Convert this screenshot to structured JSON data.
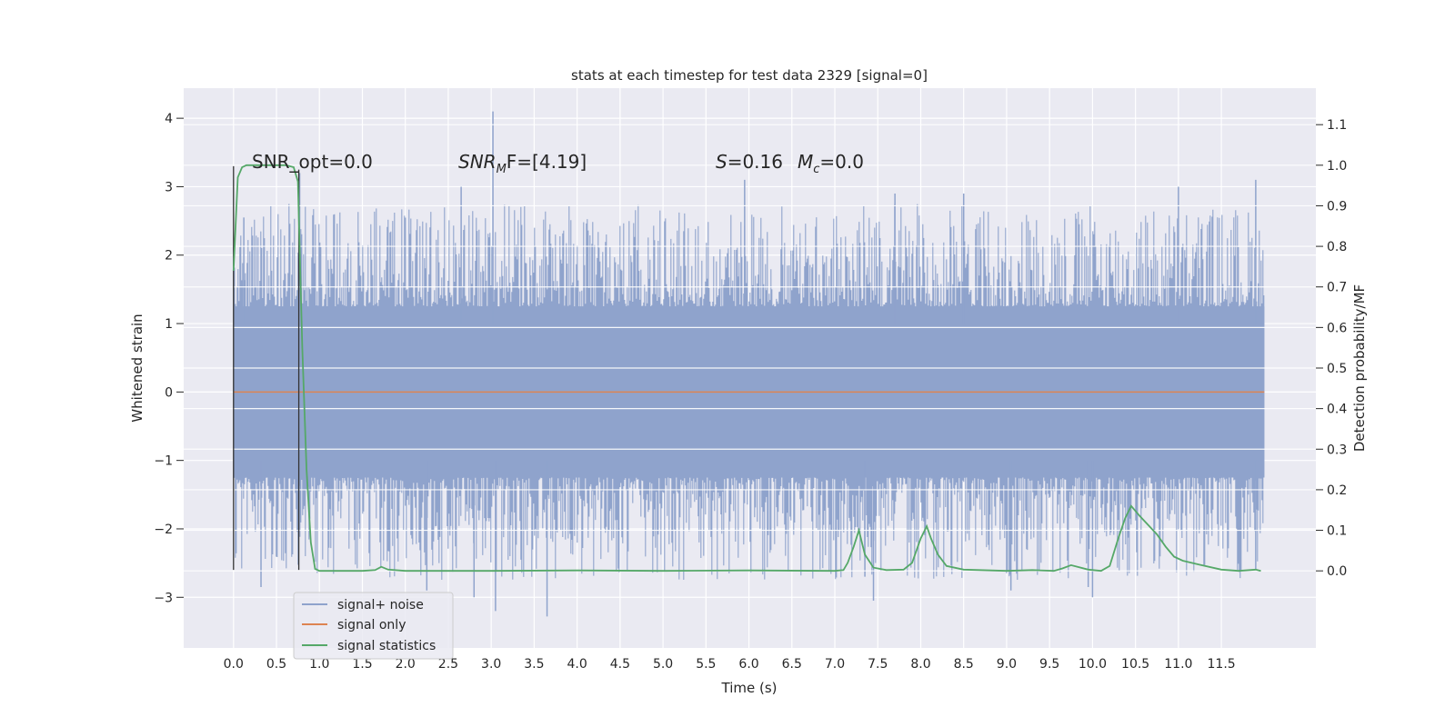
{
  "chart_data": {
    "type": "line",
    "title": "stats at each timestep for test data 2329 [signal=0]",
    "xlabel": "Time (s)",
    "ylabel_left": "Whitened strain",
    "ylabel_right": "Detection probability/MF",
    "xlim": [
      -0.58,
      12.6
    ],
    "ylim_left": [
      -3.74,
      4.44
    ],
    "ylim_right": [
      -0.19,
      1.19
    ],
    "x_ticks": [
      0.0,
      0.5,
      1.0,
      1.5,
      2.0,
      2.5,
      3.0,
      3.5,
      4.0,
      4.5,
      5.0,
      5.5,
      6.0,
      6.5,
      7.0,
      7.5,
      8.0,
      8.5,
      9.0,
      9.5,
      10.0,
      10.5,
      11.0,
      11.5
    ],
    "x_tick_labels": [
      "0.0",
      "0.5",
      "1.0",
      "1.5",
      "2.0",
      "2.5",
      "3.0",
      "3.5",
      "4.0",
      "4.5",
      "5.0",
      "5.5",
      "6.0",
      "6.5",
      "7.0",
      "7.5",
      "8.0",
      "8.5",
      "9.0",
      "9.5",
      "10.0",
      "10.5",
      "11.0",
      "11.5"
    ],
    "y_left_ticks": [
      -3,
      -2,
      -1,
      0,
      1,
      2,
      3,
      4
    ],
    "y_left_tick_labels": [
      "−3",
      "−2",
      "−1",
      "0",
      "1",
      "2",
      "3",
      "4"
    ],
    "y_right_ticks": [
      0.0,
      0.1,
      0.2,
      0.3,
      0.4,
      0.5,
      0.6,
      0.7,
      0.8,
      0.9,
      1.0,
      1.1
    ],
    "y_right_tick_labels": [
      "0.0",
      "0.1",
      "0.2",
      "0.3",
      "0.4",
      "0.5",
      "0.6",
      "0.7",
      "0.8",
      "0.9",
      "1.0",
      "1.1"
    ],
    "grid": true,
    "legend_position": "lower-left",
    "series": [
      {
        "name": "signal+ noise",
        "axis": "left",
        "color": "#8fa3cc",
        "kind": "dense-noise",
        "x_range": [
          0.0,
          12.0
        ],
        "typical_range": [
          -1.25,
          1.25
        ],
        "spikes": [
          {
            "x": 3.02,
            "y": 4.1
          },
          {
            "x": 0.77,
            "y": 3.2
          },
          {
            "x": 11.9,
            "y": 3.1
          },
          {
            "x": 5.95,
            "y": 3.1
          },
          {
            "x": 11.0,
            "y": 3.0
          },
          {
            "x": 8.5,
            "y": 2.9
          },
          {
            "x": 2.65,
            "y": 3.0
          },
          {
            "x": 7.7,
            "y": 2.9
          },
          {
            "x": 0.12,
            "y": 2.55
          },
          {
            "x": 3.65,
            "y": -3.28
          },
          {
            "x": 3.05,
            "y": -3.2
          },
          {
            "x": 7.45,
            "y": -3.05
          },
          {
            "x": 10.0,
            "y": -3.0
          },
          {
            "x": 0.32,
            "y": -2.85
          },
          {
            "x": 2.25,
            "y": -2.9
          },
          {
            "x": 9.05,
            "y": -2.9
          },
          {
            "x": 2.8,
            "y": -3.0
          },
          {
            "x": 9.95,
            "y": -2.85
          },
          {
            "x": 7.35,
            "y": -2.7
          },
          {
            "x": 11.9,
            "y": -2.6
          }
        ]
      },
      {
        "name": "signal only",
        "axis": "left",
        "color": "#dd8452",
        "x": [
          0.0,
          12.0
        ],
        "y": [
          0.0,
          0.0
        ]
      },
      {
        "name": "signal statistics",
        "axis": "right",
        "color": "#55a868",
        "x": [
          0.0,
          0.05,
          0.1,
          0.15,
          0.2,
          0.3,
          0.4,
          0.5,
          0.6,
          0.65,
          0.7,
          0.75,
          0.8,
          0.85,
          0.9,
          0.95,
          1.0,
          1.2,
          1.5,
          1.65,
          1.72,
          1.8,
          2.0,
          3.0,
          4.0,
          5.0,
          6.0,
          7.0,
          7.1,
          7.15,
          7.22,
          7.28,
          7.35,
          7.45,
          7.6,
          7.8,
          7.9,
          8.0,
          8.07,
          8.12,
          8.2,
          8.3,
          8.5,
          9.0,
          9.3,
          9.55,
          9.65,
          9.75,
          9.95,
          10.1,
          10.2,
          10.3,
          10.38,
          10.45,
          10.55,
          10.75,
          10.85,
          10.95,
          11.05,
          11.25,
          11.5,
          11.7,
          11.9,
          11.96
        ],
        "y": [
          0.74,
          0.97,
          0.995,
          1.0,
          1.0,
          1.0,
          1.0,
          1.0,
          1.0,
          0.998,
          0.995,
          0.96,
          0.55,
          0.25,
          0.07,
          0.005,
          0.0,
          0.0,
          0.0,
          0.002,
          0.01,
          0.003,
          0.0,
          0.0,
          0.001,
          0.0,
          0.001,
          0.0,
          0.002,
          0.02,
          0.06,
          0.1,
          0.04,
          0.008,
          0.002,
          0.003,
          0.02,
          0.08,
          0.11,
          0.08,
          0.04,
          0.012,
          0.003,
          0.0,
          0.002,
          0.0,
          0.006,
          0.014,
          0.003,
          0.0,
          0.012,
          0.08,
          0.13,
          0.16,
          0.135,
          0.09,
          0.06,
          0.035,
          0.025,
          0.015,
          0.003,
          0.0,
          0.003,
          0.0
        ]
      }
    ],
    "markers": [
      {
        "x": 0.0,
        "y_from": -2.6,
        "y_to": 3.3
      },
      {
        "x": 0.76,
        "y_from": -2.6,
        "y_to": 3.25
      }
    ],
    "annotations": [
      {
        "x": 0.2,
        "y": 3.3,
        "text": "SNR_opt=0.0"
      },
      {
        "x": 2.6,
        "y": 3.3,
        "text_main": "SNR",
        "text_sub": "M",
        "text_rest": "F=[4.19]",
        "italic": true
      },
      {
        "x": 5.6,
        "y": 3.3,
        "text_a": "S",
        "text_b": "=0.16",
        "text_c": "M",
        "text_sub": "c",
        "text_d": "=0.0"
      }
    ]
  }
}
